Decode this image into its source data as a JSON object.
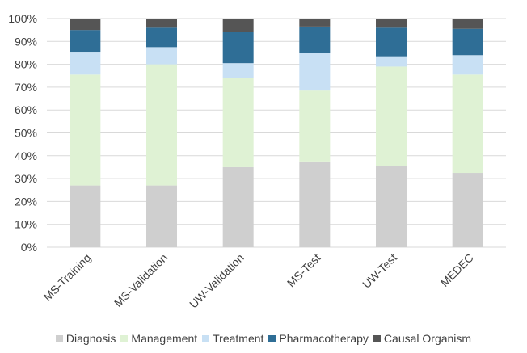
{
  "chart_data": {
    "type": "bar",
    "stacked": true,
    "normalized": true,
    "categories": [
      "MS-Training",
      "MS-Validation",
      "UW-Validation",
      "MS-Test",
      "UW-Test",
      "MEDEC"
    ],
    "series": [
      {
        "name": "Diagnosis",
        "color": "#cfcfcf",
        "values": [
          27,
          27,
          35,
          37.5,
          35.5,
          32.5
        ]
      },
      {
        "name": "Management",
        "color": "#dff2d4",
        "values": [
          48.5,
          53,
          39,
          31,
          43.5,
          43
        ]
      },
      {
        "name": "Treatment",
        "color": "#c8e0f4",
        "values": [
          10,
          7.5,
          6.5,
          16.5,
          4.5,
          8.5
        ]
      },
      {
        "name": "Pharmacotherapy",
        "color": "#2f6e96",
        "values": [
          9.5,
          8.5,
          13.5,
          11.5,
          12.5,
          11.5
        ]
      },
      {
        "name": "Causal Organism",
        "color": "#555555",
        "values": [
          5,
          4,
          6,
          3.5,
          4,
          4.5
        ]
      }
    ],
    "yticks": [
      "0%",
      "10%",
      "20%",
      "30%",
      "40%",
      "50%",
      "60%",
      "70%",
      "80%",
      "90%",
      "100%"
    ],
    "ylim": [
      0,
      100
    ],
    "grid": true,
    "legend_position": "bottom",
    "title": "",
    "xlabel": "",
    "ylabel": ""
  }
}
